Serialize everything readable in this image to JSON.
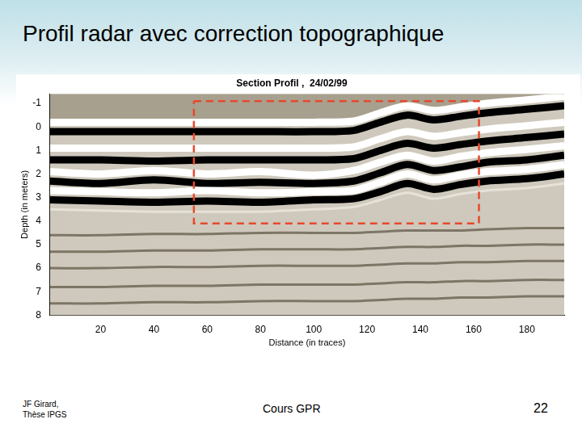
{
  "slide": {
    "title": "Profil radar avec correction topographique",
    "footer": {
      "author": [
        "JF Girard,",
        "Thèse IPGS"
      ],
      "course": "Cours GPR",
      "page": "22"
    }
  },
  "chart_data": {
    "type": "line",
    "title": "Section Profil ,  24/02/99",
    "x_label": "Distance (in traces)",
    "y_label": "Depth (in meters)",
    "x": [
      1,
      20,
      40,
      60,
      80,
      100,
      115,
      125,
      135,
      145,
      155,
      165,
      180,
      194
    ],
    "series": [
      {
        "color": "#ffffff",
        "line_style": "solid",
        "values": [
          -0.2,
          -0.2,
          -0.2,
          -0.2,
          -0.2,
          -0.2,
          -0.25,
          -0.6,
          -0.9,
          -0.7,
          -0.85,
          -1.0,
          -1.15,
          -1.3
        ]
      },
      {
        "color": "#000000",
        "line_style": "solid",
        "values": [
          0.2,
          0.2,
          0.2,
          0.2,
          0.2,
          0.2,
          0.15,
          -0.2,
          -0.5,
          -0.3,
          -0.45,
          -0.6,
          -0.75,
          -0.9
        ]
      },
      {
        "color": "#ffffff",
        "line_style": "solid",
        "values": [
          0.9,
          0.9,
          0.9,
          0.9,
          0.9,
          0.9,
          0.85,
          0.5,
          0.2,
          0.4,
          0.25,
          0.1,
          -0.05,
          -0.2
        ]
      },
      {
        "color": "#000000",
        "line_style": "solid",
        "values": [
          1.4,
          1.4,
          1.45,
          1.4,
          1.4,
          1.4,
          1.35,
          1.0,
          0.7,
          0.9,
          0.75,
          0.6,
          0.45,
          0.3
        ]
      },
      {
        "color": "#ffffff",
        "line_style": "solid",
        "values": [
          1.9,
          2.0,
          1.85,
          2.0,
          1.9,
          2.05,
          1.85,
          1.5,
          1.2,
          1.45,
          1.25,
          1.1,
          0.95,
          0.8
        ]
      },
      {
        "color": "#000000",
        "line_style": "solid",
        "values": [
          2.3,
          2.4,
          2.25,
          2.4,
          2.35,
          2.4,
          2.3,
          1.95,
          1.6,
          1.85,
          1.7,
          1.5,
          1.4,
          1.2
        ]
      },
      {
        "color": "#ffffff",
        "line_style": "solid",
        "values": [
          2.7,
          2.75,
          2.8,
          2.7,
          2.8,
          2.75,
          2.7,
          2.35,
          2.0,
          2.25,
          2.05,
          1.9,
          1.8,
          1.6
        ]
      },
      {
        "color": "#000000",
        "line_style": "solid",
        "values": [
          3.1,
          3.15,
          3.2,
          3.15,
          3.2,
          3.1,
          3.05,
          2.75,
          2.4,
          2.65,
          2.45,
          2.3,
          2.2,
          2.0
        ]
      },
      {
        "color": "#e6e2d8",
        "line_style": "solid",
        "values": [
          3.5,
          3.55,
          3.6,
          3.6,
          3.6,
          3.5,
          3.4,
          3.1,
          2.8,
          3.05,
          2.85,
          2.7,
          2.6,
          2.4
        ]
      },
      {
        "color": "#7d7566",
        "line_style": "solid",
        "values": [
          4.6,
          4.6,
          4.55,
          4.55,
          4.5,
          4.5,
          4.5,
          4.45,
          4.4,
          4.4,
          4.4,
          4.35,
          4.3,
          4.3
        ]
      },
      {
        "color": "#7d7566",
        "line_style": "solid",
        "values": [
          5.3,
          5.3,
          5.25,
          5.25,
          5.2,
          5.2,
          5.2,
          5.15,
          5.1,
          5.1,
          5.05,
          5.05,
          5.0,
          5.0
        ]
      },
      {
        "color": "#7d7566",
        "line_style": "solid",
        "values": [
          6.0,
          6.0,
          5.95,
          5.95,
          5.9,
          5.9,
          5.9,
          5.85,
          5.8,
          5.8,
          5.75,
          5.75,
          5.7,
          5.7
        ]
      },
      {
        "color": "#7d7566",
        "line_style": "solid",
        "values": [
          6.8,
          6.8,
          6.75,
          6.75,
          6.7,
          6.7,
          6.7,
          6.65,
          6.6,
          6.6,
          6.55,
          6.55,
          6.5,
          6.5
        ]
      },
      {
        "color": "#7d7566",
        "line_style": "solid",
        "values": [
          7.5,
          7.5,
          7.45,
          7.45,
          7.4,
          7.4,
          7.4,
          7.35,
          7.3,
          7.3,
          7.25,
          7.25,
          7.2,
          7.2
        ]
      },
      {
        "color": "#e8482c",
        "line_style": "dashed",
        "x": [
          55,
          162,
          162,
          55,
          55
        ],
        "values": [
          -1.1,
          -1.1,
          4.1,
          4.1,
          -1.1
        ]
      }
    ],
    "xlim": [
      1,
      194
    ],
    "xticks": [
      20,
      40,
      60,
      80,
      100,
      120,
      140,
      160,
      180
    ],
    "ylim": [
      -1.4,
      8
    ],
    "yticks": [
      -1,
      0,
      1,
      2,
      3,
      4,
      5,
      6,
      7,
      8
    ],
    "grid": false
  }
}
